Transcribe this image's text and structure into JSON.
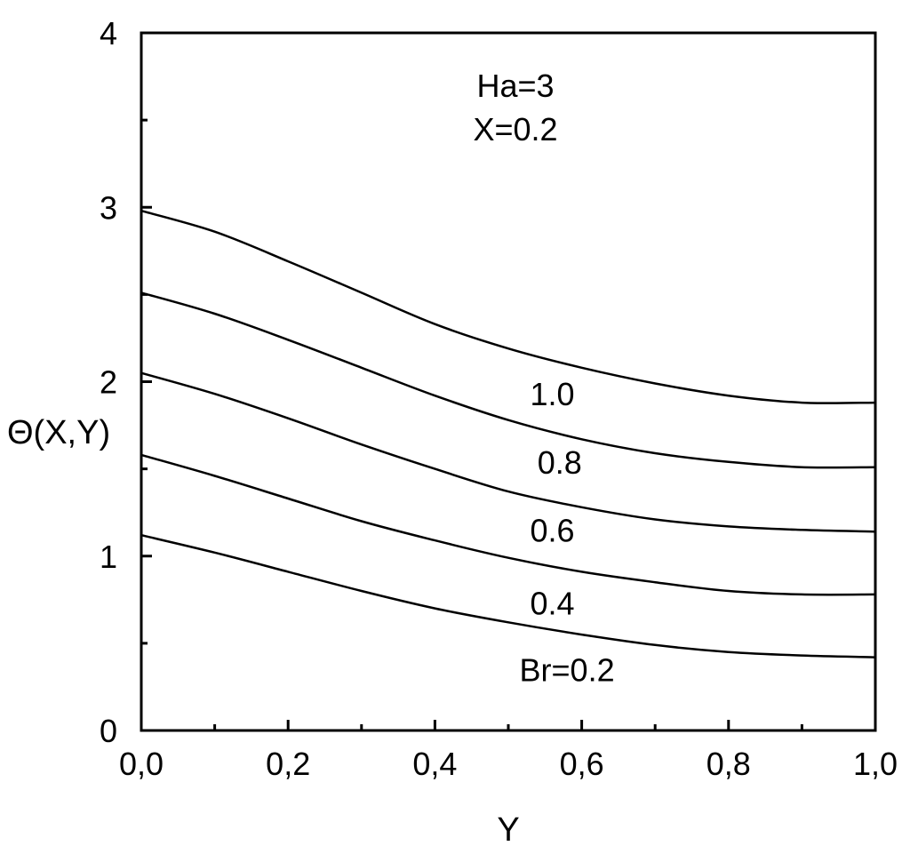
{
  "chart_data": {
    "type": "line",
    "xlabel": "Y",
    "ylabel": "Θ(X,Y)",
    "xlim": [
      0,
      1
    ],
    "ylim": [
      0,
      4
    ],
    "x_ticks": [
      {
        "value": 0.0,
        "label": "0,0"
      },
      {
        "value": 0.2,
        "label": "0,2"
      },
      {
        "value": 0.4,
        "label": "0,4"
      },
      {
        "value": 0.6,
        "label": "0,6"
      },
      {
        "value": 0.8,
        "label": "0,8"
      },
      {
        "value": 1.0,
        "label": "1,0"
      }
    ],
    "y_ticks": [
      {
        "value": 0,
        "label": "0"
      },
      {
        "value": 1,
        "label": "1"
      },
      {
        "value": 2,
        "label": "2"
      },
      {
        "value": 3,
        "label": "3"
      },
      {
        "value": 4,
        "label": "4"
      }
    ],
    "annotations": [
      {
        "text": "Ha=3",
        "x": 0.5,
        "y": 3.7
      },
      {
        "text": "X=0.2",
        "x": 0.5,
        "y": 3.45
      }
    ],
    "x": [
      0.0,
      0.1,
      0.2,
      0.3,
      0.4,
      0.5,
      0.6,
      0.7,
      0.8,
      0.9,
      1.0
    ],
    "series": [
      {
        "name": "Br=0.2",
        "label_at": [
          0.58,
          0.35
        ],
        "values": [
          1.12,
          1.02,
          0.91,
          0.8,
          0.7,
          0.62,
          0.55,
          0.49,
          0.45,
          0.43,
          0.42
        ]
      },
      {
        "name": "0.4",
        "label_at": [
          0.56,
          0.73
        ],
        "values": [
          1.58,
          1.46,
          1.33,
          1.2,
          1.09,
          0.99,
          0.91,
          0.85,
          0.8,
          0.78,
          0.78
        ]
      },
      {
        "name": "0.6",
        "label_at": [
          0.56,
          1.15
        ],
        "values": [
          2.05,
          1.93,
          1.79,
          1.64,
          1.5,
          1.37,
          1.28,
          1.21,
          1.17,
          1.15,
          1.14
        ]
      },
      {
        "name": "0.8",
        "label_at": [
          0.57,
          1.54
        ],
        "values": [
          2.51,
          2.39,
          2.24,
          2.08,
          1.92,
          1.78,
          1.67,
          1.59,
          1.54,
          1.51,
          1.51
        ]
      },
      {
        "name": "1.0",
        "label_at": [
          0.56,
          1.93
        ],
        "values": [
          2.98,
          2.86,
          2.69,
          2.51,
          2.33,
          2.19,
          2.08,
          1.99,
          1.92,
          1.88,
          1.88
        ]
      }
    ],
    "grid": false,
    "legend": "none"
  }
}
